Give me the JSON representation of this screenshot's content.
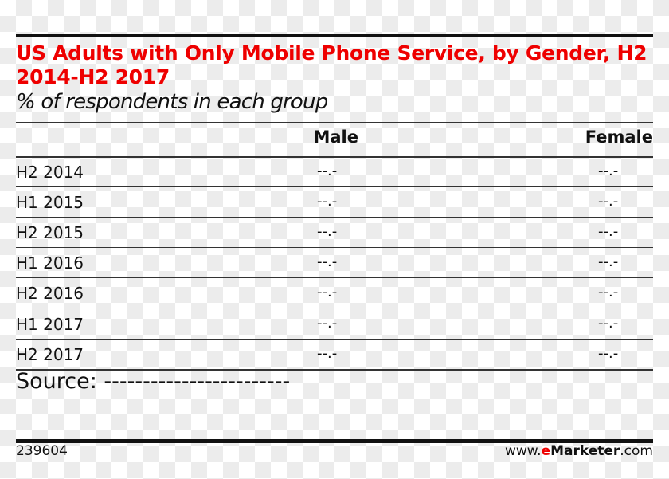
{
  "chart_data": {
    "type": "table",
    "title": "US Adults with Only Mobile Phone Service, by Gender, H2 2014-H2 2017",
    "subtitle": "% of respondents in each group",
    "columns": [
      "Male",
      "Female"
    ],
    "rows": [
      {
        "label": "H2 2014",
        "values": [
          "--.-",
          "--.-"
        ]
      },
      {
        "label": "H1 2015",
        "values": [
          "--.-",
          "--.-"
        ]
      },
      {
        "label": "H2 2015",
        "values": [
          "--.-",
          "--.-"
        ]
      },
      {
        "label": "H1 2016",
        "values": [
          "--.-",
          "--.-"
        ]
      },
      {
        "label": "H2 2016",
        "values": [
          "--.-",
          "--.-"
        ]
      },
      {
        "label": "H1 2017",
        "values": [
          "--.-",
          "--.-"
        ]
      },
      {
        "label": "H2 2017",
        "values": [
          "--.-",
          "--.-"
        ]
      }
    ],
    "source": "Source: ------------------------"
  },
  "footer": {
    "id": "239604",
    "site_prefix": "www.",
    "site_brand_e": "e",
    "site_brand_rest": "Marketer",
    "site_suffix": ".com"
  },
  "colors": {
    "title": "#ee0000",
    "brand_e": "#ee0000"
  }
}
